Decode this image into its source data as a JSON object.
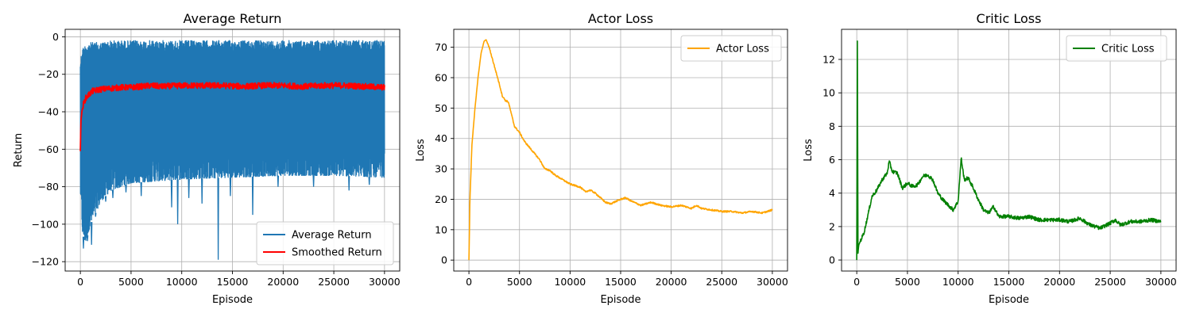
{
  "chart_data": [
    {
      "type": "line",
      "title": "Average Return",
      "xlabel": "Episode",
      "ylabel": "Return",
      "xlim": [
        -1500,
        31500
      ],
      "ylim": [
        -125,
        4
      ],
      "xticks": [
        0,
        5000,
        10000,
        15000,
        20000,
        25000,
        30000
      ],
      "yticks": [
        0,
        -20,
        -40,
        -60,
        -80,
        -100,
        -120
      ],
      "grid": true,
      "legend": "bottom-right",
      "series": [
        {
          "name": "Average Return",
          "color": "#1f77b4",
          "style": "noisy_band",
          "x": [
            0,
            200,
            500,
            1000,
            2000,
            3000,
            5000,
            10000,
            15000,
            20000,
            25000,
            30000
          ],
          "upper": [
            -12,
            -6,
            -4,
            -3,
            -3,
            -2,
            -2,
            -2,
            -2,
            -2,
            -2,
            -2
          ],
          "lower": [
            -85,
            -105,
            -110,
            -100,
            -88,
            -82,
            -78,
            -76,
            -75,
            -74,
            -74,
            -75
          ],
          "spikes": [
            {
              "x": 300,
              "y": -113
            },
            {
              "x": 700,
              "y": -109
            },
            {
              "x": 1100,
              "y": -111
            },
            {
              "x": 1500,
              "y": -96
            },
            {
              "x": 2500,
              "y": -88
            },
            {
              "x": 3200,
              "y": -86
            },
            {
              "x": 4500,
              "y": -83
            },
            {
              "x": 6000,
              "y": -85
            },
            {
              "x": 9000,
              "y": -91
            },
            {
              "x": 9600,
              "y": -100
            },
            {
              "x": 10700,
              "y": -86
            },
            {
              "x": 12000,
              "y": -89
            },
            {
              "x": 13600,
              "y": -119
            },
            {
              "x": 14800,
              "y": -85
            },
            {
              "x": 17000,
              "y": -95
            },
            {
              "x": 19500,
              "y": -80
            },
            {
              "x": 23000,
              "y": -80
            },
            {
              "x": 26500,
              "y": -82
            },
            {
              "x": 28500,
              "y": -79
            }
          ]
        },
        {
          "name": "Smoothed Return",
          "color": "#ff0000",
          "style": "line",
          "x": [
            0,
            50,
            150,
            300,
            500,
            800,
            1200,
            2000,
            3000,
            4000,
            5000,
            6000,
            7000,
            8000,
            10000,
            12000,
            14000,
            16000,
            18000,
            20000,
            22000,
            24000,
            26000,
            28000,
            30000
          ],
          "y": [
            -61,
            -45,
            -40,
            -36,
            -33,
            -31,
            -29,
            -28,
            -27.5,
            -27,
            -27,
            -26.5,
            -26,
            -26.5,
            -26,
            -26,
            -26,
            -26.5,
            -26,
            -26,
            -26.5,
            -26,
            -26,
            -26.5,
            -27
          ]
        }
      ]
    },
    {
      "type": "line",
      "title": "Actor Loss",
      "xlabel": "Episode",
      "ylabel": "Loss",
      "xlim": [
        -1500,
        31500
      ],
      "ylim": [
        -3.6,
        75.9
      ],
      "xticks": [
        0,
        5000,
        10000,
        15000,
        20000,
        25000,
        30000
      ],
      "yticks": [
        0,
        10,
        20,
        30,
        40,
        50,
        60,
        70
      ],
      "grid": true,
      "legend": "top-right",
      "series": [
        {
          "name": "Actor Loss",
          "color": "#ffa500",
          "x": [
            0,
            100,
            300,
            600,
            900,
            1200,
            1500,
            1700,
            2000,
            2500,
            3000,
            3300,
            3600,
            3900,
            4200,
            4500,
            5000,
            5500,
            6000,
            6500,
            7000,
            7500,
            8000,
            8500,
            9000,
            9500,
            10000,
            10500,
            11000,
            11500,
            12000,
            12500,
            13000,
            13500,
            14000,
            15000,
            15500,
            16000,
            17000,
            18000,
            19000,
            20000,
            21000,
            22000,
            22500,
            23000,
            24000,
            25000,
            26000,
            27000,
            28000,
            29000,
            30000
          ],
          "y": [
            0,
            20,
            38,
            50,
            60,
            68,
            72,
            72.5,
            70,
            64,
            58,
            54,
            52.5,
            52,
            48,
            44,
            42,
            39,
            37,
            35,
            33,
            30,
            29.5,
            28,
            27,
            26,
            25,
            24.5,
            24,
            22.5,
            23,
            22,
            20.5,
            19,
            18.5,
            20,
            20.5,
            19.5,
            18,
            19,
            18,
            17.5,
            18,
            17,
            18,
            17,
            16.5,
            16,
            16,
            15.5,
            16,
            15.5,
            16.5
          ]
        }
      ]
    },
    {
      "type": "line",
      "title": "Critic Loss",
      "xlabel": "Episode",
      "ylabel": "Loss",
      "xlim": [
        -1500,
        31500
      ],
      "ylim": [
        -0.66,
        13.8
      ],
      "xticks": [
        0,
        5000,
        10000,
        15000,
        20000,
        25000,
        30000
      ],
      "yticks": [
        0,
        2,
        4,
        6,
        8,
        10,
        12
      ],
      "grid": true,
      "legend": "top-right",
      "series": [
        {
          "name": "Critic Loss",
          "color": "#008000",
          "x": [
            0,
            60,
            120,
            200,
            400,
            700,
            1000,
            1500,
            2000,
            2500,
            3000,
            3200,
            3500,
            4000,
            4500,
            5000,
            5500,
            6000,
            6500,
            7000,
            7500,
            8000,
            8500,
            9000,
            9500,
            10000,
            10300,
            10600,
            11000,
            11500,
            12000,
            12500,
            13000,
            13500,
            14000,
            15000,
            16000,
            17000,
            18000,
            19000,
            20000,
            21000,
            22000,
            23000,
            24000,
            25000,
            25500,
            26000,
            27000,
            28000,
            29000,
            30000
          ],
          "y": [
            0,
            13.1,
            0.4,
            0.9,
            1.2,
            1.6,
            2.4,
            3.8,
            4.2,
            4.8,
            5.2,
            5.9,
            5.3,
            5.2,
            4.3,
            4.6,
            4.4,
            4.5,
            5.0,
            5.1,
            4.8,
            4.0,
            3.6,
            3.3,
            3.0,
            3.5,
            6.1,
            4.8,
            4.9,
            4.3,
            3.6,
            3.0,
            2.8,
            3.2,
            2.6,
            2.6,
            2.5,
            2.6,
            2.4,
            2.4,
            2.4,
            2.3,
            2.5,
            2.1,
            1.9,
            2.2,
            2.4,
            2.1,
            2.3,
            2.3,
            2.4,
            2.3
          ]
        }
      ]
    }
  ]
}
